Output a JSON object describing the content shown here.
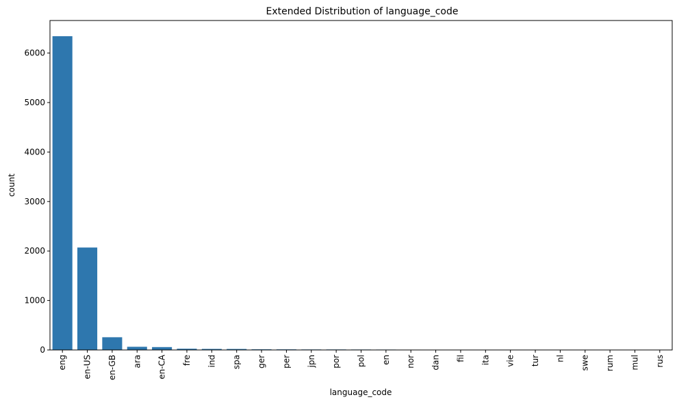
{
  "chart_data": {
    "type": "bar",
    "title": "Extended Distribution of language_code",
    "xlabel": "language_code",
    "ylabel": "count",
    "categories": [
      "eng",
      "en-US",
      "en-GB",
      "ara",
      "en-CA",
      "fre",
      "ind",
      "spa",
      "ger",
      "per",
      "jpn",
      "por",
      "pol",
      "en",
      "nor",
      "dan",
      "fil",
      "ita",
      "vie",
      "tur",
      "nl",
      "swe",
      "rum",
      "mul",
      "rus"
    ],
    "values": [
      6341,
      2070,
      257,
      64,
      58,
      25,
      21,
      20,
      13,
      12,
      10,
      10,
      9,
      8,
      7,
      6,
      3,
      3,
      1,
      1,
      1,
      1,
      1,
      1,
      1
    ],
    "ylim": [
      0,
      6658
    ],
    "yticks": [
      0,
      1000,
      2000,
      3000,
      4000,
      5000,
      6000
    ],
    "bar_color": "#2e77ae",
    "grid": false
  }
}
